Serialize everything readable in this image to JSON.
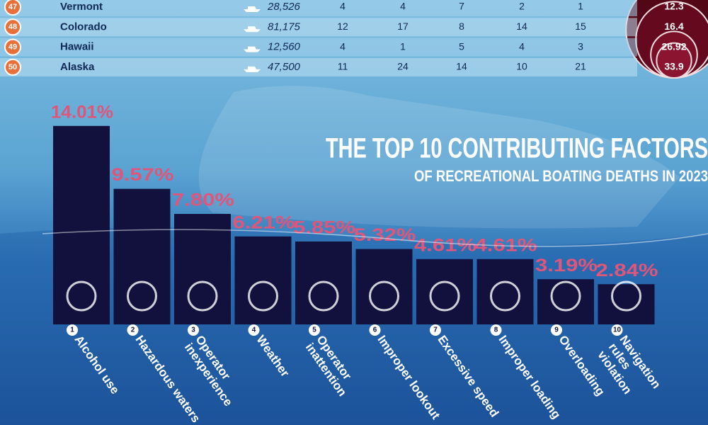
{
  "table": {
    "rows": [
      [
        "47",
        "Vermont",
        "28,526",
        4,
        4,
        7,
        2,
        1,
        12.3
      ],
      [
        "48",
        "Colorado",
        "81,175",
        12,
        17,
        8,
        14,
        15,
        16.4
      ],
      [
        "49",
        "Hawaii",
        "12,560",
        4,
        1,
        5,
        4,
        3,
        26.92
      ],
      [
        "50",
        "Alaska",
        "47,500",
        11,
        24,
        14,
        10,
        21,
        33.9
      ]
    ]
  },
  "chart_data": {
    "type": "bar",
    "title": "THE TOP 10 CONTRIBUTING FACTORS",
    "subtitle": "OF RECREATIONAL BOATING DEATHS IN 2023",
    "ranks": [
      "1",
      "2",
      "3",
      "4",
      "5",
      "6",
      "7",
      "8",
      "9",
      "10"
    ],
    "categories": [
      "Alcohol use",
      "Hazardous waters",
      "Operator\ninexperience",
      "Weather",
      "Operator\ninattention",
      "Improper lookout",
      "Excessive speed",
      "Improper loading",
      "Overloading",
      "Navigation\nrules violation"
    ],
    "values": [
      14.01,
      9.57,
      7.8,
      6.21,
      5.85,
      5.32,
      4.61,
      4.61,
      3.19,
      2.84
    ],
    "value_labels": [
      "14.01%",
      "9.57%",
      "7.80%",
      "6.21%",
      "5.85%",
      "5.32%",
      "4.61%",
      "4.61%",
      "3.19%",
      "2.84%"
    ],
    "color": "#12113d",
    "label_color": "#e0557a"
  }
}
